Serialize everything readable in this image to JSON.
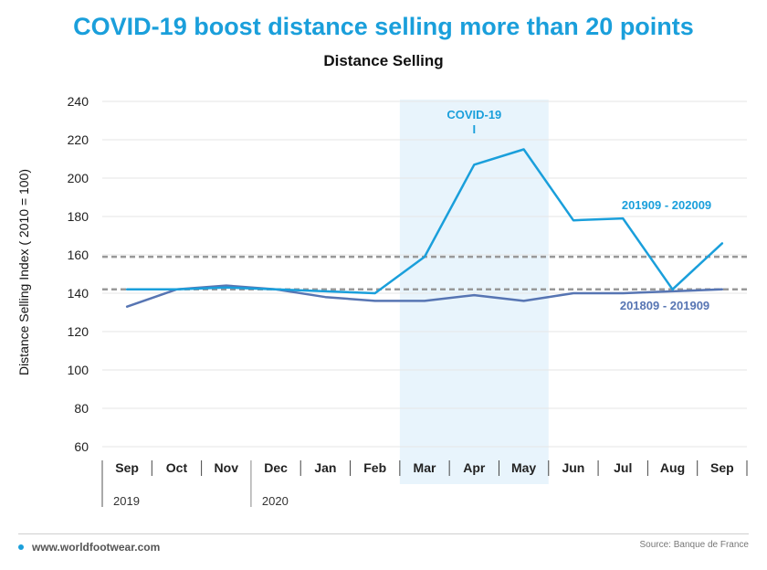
{
  "header": {
    "headline": "COVID-19 boost distance selling more than 20 points",
    "subtitle": "Distance Selling"
  },
  "footer": {
    "website": "www.worldfootwear.com",
    "source": "Source: Banque de France"
  },
  "colors": {
    "brand": "#1a9fdb",
    "series_2020": "#1a9fdb",
    "series_2019": "#5775b3",
    "covid_band": "#e8f4fc",
    "reference_line": "#999999"
  },
  "chart_data": {
    "type": "line",
    "title": "Distance Selling",
    "ylabel": "Distance Selling Index ( 2010 = 100)",
    "xlabel": "",
    "ylim": [
      60,
      240
    ],
    "yticks": [
      60,
      80,
      100,
      120,
      140,
      160,
      180,
      200,
      220,
      240
    ],
    "categories": [
      "Sep",
      "Oct",
      "Nov",
      "Dec",
      "Jan",
      "Feb",
      "Mar",
      "Apr",
      "May",
      "Jun",
      "Jul",
      "Aug",
      "Sep"
    ],
    "year_labels": [
      {
        "label": "2019",
        "start_index": 0
      },
      {
        "label": "2020",
        "start_index": 3
      }
    ],
    "grid": true,
    "series": [
      {
        "name": "201909 - 202009",
        "values": [
          142,
          142,
          143,
          142,
          141,
          140,
          159,
          207,
          215,
          178,
          179,
          142,
          166
        ]
      },
      {
        "name": "201809 - 201909",
        "values": [
          133,
          142,
          144,
          142,
          138,
          136,
          136,
          139,
          136,
          140,
          140,
          141,
          142
        ]
      }
    ],
    "reference_lines": [
      142,
      159
    ],
    "highlight": {
      "label": "COVID-19",
      "marker": "I",
      "from": "Mar",
      "to": "May"
    }
  }
}
